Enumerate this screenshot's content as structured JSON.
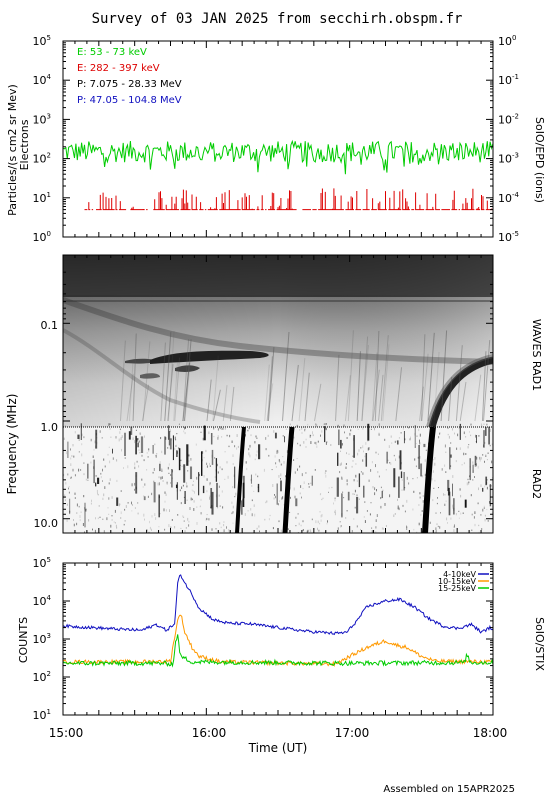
{
  "title": "Survey of 03 JAN 2025 from secchirh.obspm.fr",
  "footer": "Assembled on 15APR2025",
  "colors": {
    "green": "#00cc00",
    "red": "#dd0000",
    "black": "#000000",
    "blue": "#1010c0",
    "orange": "#ff9900"
  },
  "chart_data": [
    {
      "type": "line",
      "name": "particles",
      "ylabel": "Particles/(s cm2 sr Mev)",
      "ylabel2": "Electrons",
      "right_label": "SoIO/EPD (ions)",
      "ylim_log": [
        0,
        5
      ],
      "y_tick_labels": [
        "10^0",
        "10^1",
        "10^2",
        "10^3",
        "10^4",
        "10^5"
      ],
      "right_ylim_log": [
        -5,
        0
      ],
      "right_tick_labels": [
        "10^-5",
        "10^-4",
        "10^-3",
        "10^-2",
        "10^-1",
        "10^0"
      ],
      "xlim_hours": [
        15,
        18
      ],
      "legend": [
        {
          "label": "E: 53 - 73 keV",
          "color": "#00cc00"
        },
        {
          "label": "E: 282 - 397 keV",
          "color": "#dd0000"
        },
        {
          "label": "P: 7.075 - 28.33 MeV",
          "color": "#000000"
        },
        {
          "label": "P: 47.05 - 104.8 MeV",
          "color": "#1010c0"
        }
      ],
      "series": [
        {
          "name": "E: 53 - 73 keV",
          "color": "#00cc00",
          "typical_value": 150,
          "range": [
            40,
            400
          ]
        },
        {
          "name": "E: 282 - 397 keV",
          "color": "#dd0000",
          "typical_value": 5,
          "range": [
            5,
            18
          ]
        }
      ]
    },
    {
      "type": "heatmap",
      "name": "spectrogram",
      "ylabel": "Frequency (MHz)",
      "right_labels": [
        "WAVES RAD1",
        "RAD2"
      ],
      "y_tick_labels": [
        "0.1",
        "1.0",
        "10.0"
      ],
      "ylim_mhz": [
        0.02,
        14
      ],
      "boundary_mhz": 1.0,
      "xlim_hours": [
        15,
        18
      ],
      "bursts_hours": [
        16.25,
        16.58,
        17.5
      ]
    },
    {
      "type": "line",
      "name": "stix",
      "ylabel": "COUNTS",
      "right_label": "SoIO/STIX",
      "xlabel": "Time (UT)",
      "x_tick_labels": [
        "15:00",
        "16:00",
        "17:00",
        "18:00"
      ],
      "xlim_hours": [
        15,
        18
      ],
      "ylim_log": [
        1,
        5
      ],
      "y_tick_labels": [
        "10^1",
        "10^2",
        "10^3",
        "10^4",
        "10^5"
      ],
      "legend": [
        {
          "label": "4-10keV",
          "color": "#1010c0"
        },
        {
          "label": "10-15keV",
          "color": "#ff9900"
        },
        {
          "label": "15-25keV",
          "color": "#00cc00"
        }
      ],
      "series": [
        {
          "name": "4-10keV",
          "color": "#1010c0",
          "points": [
            [
              15.0,
              2200
            ],
            [
              15.2,
              2000
            ],
            [
              15.4,
              1800
            ],
            [
              15.55,
              1700
            ],
            [
              15.65,
              2400
            ],
            [
              15.72,
              1700
            ],
            [
              15.78,
              2500
            ],
            [
              15.8,
              30000
            ],
            [
              15.82,
              50000
            ],
            [
              15.85,
              30000
            ],
            [
              15.9,
              15000
            ],
            [
              15.95,
              6500
            ],
            [
              16.05,
              3200
            ],
            [
              16.15,
              2600
            ],
            [
              16.3,
              2500
            ],
            [
              16.5,
              2000
            ],
            [
              16.7,
              1600
            ],
            [
              16.9,
              1400
            ],
            [
              16.98,
              1500
            ],
            [
              17.05,
              3000
            ],
            [
              17.12,
              7000
            ],
            [
              17.25,
              10000
            ],
            [
              17.35,
              11000
            ],
            [
              17.45,
              7000
            ],
            [
              17.55,
              3500
            ],
            [
              17.65,
              2200
            ],
            [
              17.75,
              1900
            ],
            [
              17.85,
              2400
            ],
            [
              17.92,
              1500
            ],
            [
              17.98,
              2000
            ],
            [
              18.0,
              1800
            ]
          ]
        },
        {
          "name": "10-15keV",
          "color": "#ff9900",
          "points": [
            [
              15.0,
              250
            ],
            [
              15.5,
              250
            ],
            [
              15.75,
              260
            ],
            [
              15.78,
              1200
            ],
            [
              15.8,
              3000
            ],
            [
              15.82,
              5000
            ],
            [
              15.85,
              1500
            ],
            [
              15.9,
              600
            ],
            [
              15.95,
              350
            ],
            [
              16.1,
              250
            ],
            [
              16.6,
              230
            ],
            [
              16.9,
              220
            ],
            [
              17.0,
              350
            ],
            [
              17.12,
              600
            ],
            [
              17.25,
              900
            ],
            [
              17.32,
              700
            ],
            [
              17.4,
              600
            ],
            [
              17.5,
              350
            ],
            [
              17.6,
              260
            ],
            [
              18.0,
              250
            ]
          ]
        },
        {
          "name": "15-25keV",
          "color": "#00cc00",
          "points": [
            [
              15.0,
              230
            ],
            [
              15.7,
              230
            ],
            [
              15.77,
              220
            ],
            [
              15.785,
              900
            ],
            [
              15.8,
              1200
            ],
            [
              15.82,
              350
            ],
            [
              15.9,
              250
            ],
            [
              17.0,
              230
            ],
            [
              17.8,
              240
            ],
            [
              17.82,
              400
            ],
            [
              17.84,
              240
            ],
            [
              18.0,
              240
            ]
          ]
        }
      ]
    }
  ]
}
